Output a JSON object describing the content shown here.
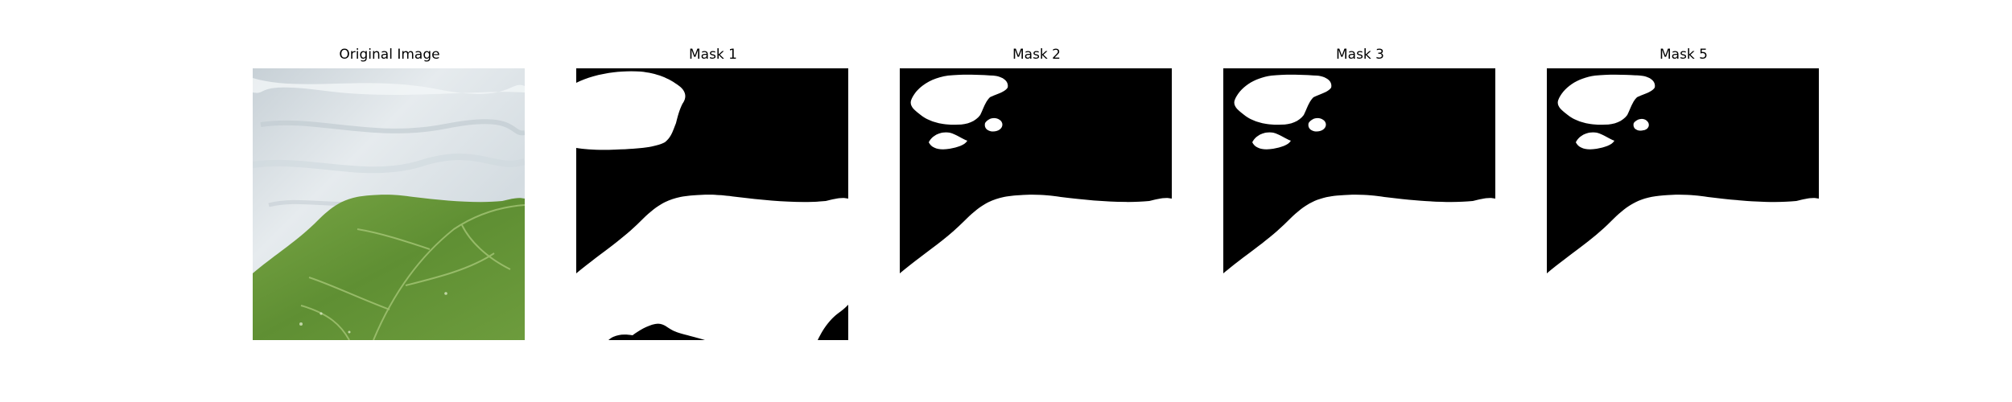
{
  "figure": {
    "panels": [
      {
        "title": "Original Image",
        "kind": "photo",
        "icon": "leaf-photo"
      },
      {
        "title": "Mask 1",
        "kind": "mask",
        "variant": "full"
      },
      {
        "title": "Mask 2",
        "kind": "mask",
        "variant": "partial"
      },
      {
        "title": "Mask 3",
        "kind": "mask",
        "variant": "partial"
      },
      {
        "title": "Mask 5",
        "kind": "mask",
        "variant": "partial"
      }
    ],
    "colors": {
      "mask_background": "#000000",
      "mask_foreground": "#ffffff",
      "leaf_green": "#6b9a3c",
      "leaf_dark": "#4f7a28",
      "background_surface": "#dde5ea"
    }
  }
}
